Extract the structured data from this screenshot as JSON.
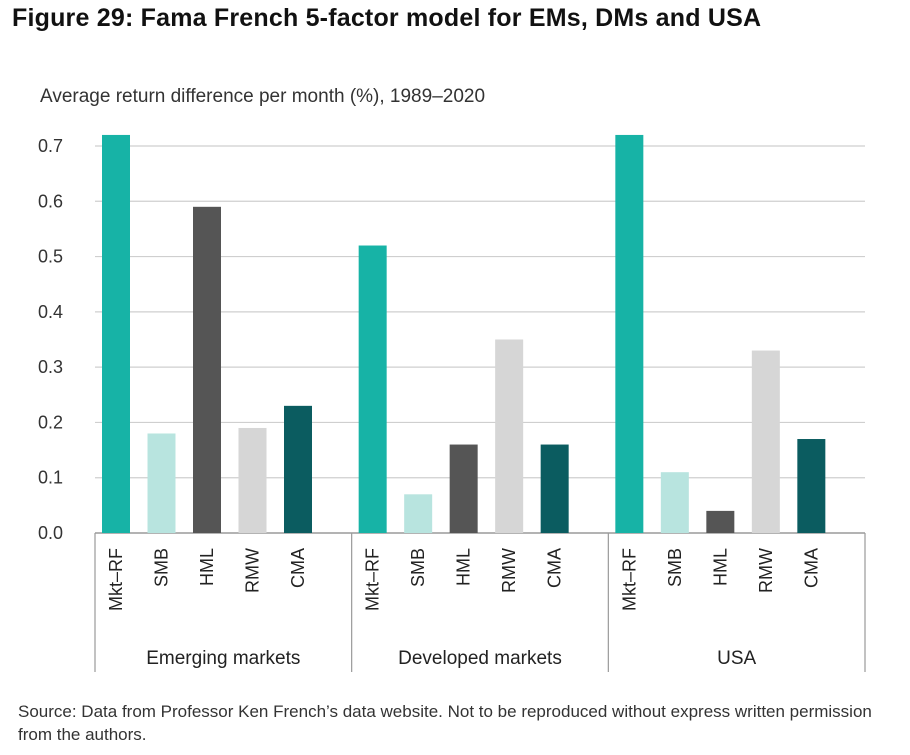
{
  "figure": {
    "title": "Figure 29: Fama French 5-factor model for EMs, DMs and USA",
    "subtitle": "Average return difference per month (%), 1989–2020",
    "source": "Source: Data from Professor Ken French’s data website. Not to be reproduced without express written permission from the authors."
  },
  "chart_data": {
    "type": "bar",
    "title": "Figure 29: Fama French 5-factor model for EMs, DMs and USA",
    "ylabel": "Average return difference per month (%), 1989–2020",
    "xlabel": "",
    "ylim": [
      0,
      0.7
    ],
    "yticks": [
      "0.0",
      "0.1",
      "0.2",
      "0.3",
      "0.4",
      "0.5",
      "0.6",
      "0.7"
    ],
    "grid": true,
    "factors": [
      "Mkt–RF",
      "SMB",
      "HML",
      "RMW",
      "CMA"
    ],
    "factor_colors": [
      "#17b3a6",
      "#b8e4df",
      "#555555",
      "#d6d6d6",
      "#0b5c60"
    ],
    "groups": [
      {
        "name": "Emerging markets",
        "values": [
          0.72,
          0.18,
          0.59,
          0.19,
          0.23
        ]
      },
      {
        "name": "Developed markets",
        "values": [
          0.52,
          0.07,
          0.16,
          0.35,
          0.16
        ]
      },
      {
        "name": "USA",
        "values": [
          0.72,
          0.11,
          0.04,
          0.33,
          0.17
        ]
      }
    ]
  }
}
